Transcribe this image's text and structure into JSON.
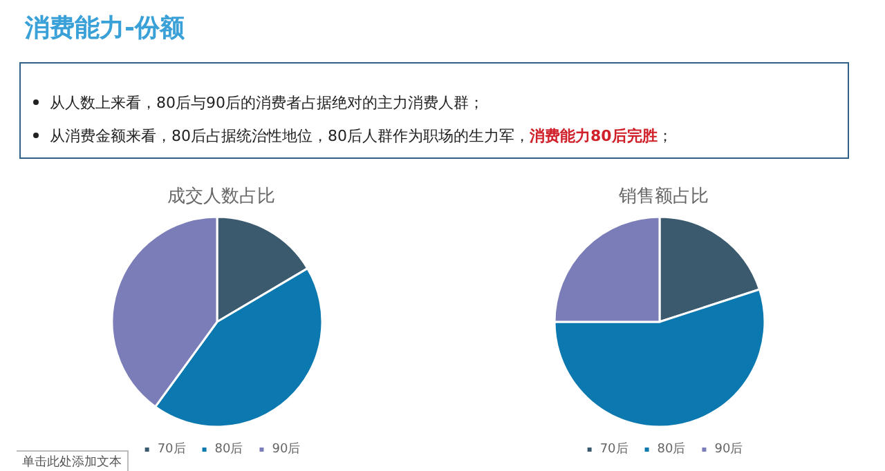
{
  "chart_data": [
    {
      "type": "other",
      "title": "消费能力-份额",
      "annotations": [
        "从人数上来看，80后与90后的消费者占据绝对的主力消费人群；",
        "从消费金额来看，80后占据统治性地位，80后人群作为职场的生力军，",
        "消费能力80后完胜",
        "；",
        "单击此处添加文本"
      ]
    },
    {
      "type": "pie",
      "title": "成交人数占比",
      "categories": [
        "70后",
        "80后",
        "90后"
      ],
      "values": [
        16.5,
        43.5,
        40
      ],
      "colors": [
        "#3b5a6e",
        "#0b78b0",
        "#7b7db8"
      ],
      "legend": "bottom"
    },
    {
      "type": "pie",
      "title": "销售额占比",
      "categories": [
        "70后",
        "80后",
        "90后"
      ],
      "values": [
        20,
        55,
        25
      ],
      "colors": [
        "#3b5a6e",
        "#0b78b0",
        "#7b7db8"
      ],
      "legend": "bottom"
    }
  ]
}
